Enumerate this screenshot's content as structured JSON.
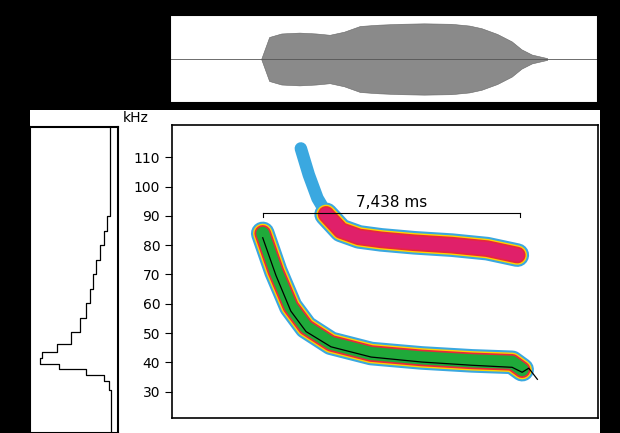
{
  "chart_data": {
    "type": "spectrogram",
    "y_label": "kHz",
    "xlim": [
      0,
      12.3
    ],
    "ylim": [
      21,
      121
    ],
    "yticks": [
      30,
      40,
      50,
      60,
      70,
      80,
      90,
      100,
      110
    ],
    "tick_labels": "y",
    "grid": false,
    "annotation": {
      "text": "7,438 ms",
      "start": 2.62,
      "end": 10.05,
      "y": 90.9
    },
    "series": [
      {
        "type": "faint",
        "color": "#3aa8e0",
        "x": [
          3.72,
          3.95,
          4.2,
          4.5
        ],
        "values": [
          113,
          104,
          96,
          90
        ]
      },
      {
        "type": "band",
        "color": "#e0206a",
        "x": [
          4.45,
          4.88,
          5.4,
          6.04,
          7.0,
          8.08,
          9.1,
          9.97
        ],
        "values": [
          90.5,
          85,
          82.8,
          81.8,
          80.8,
          80,
          78.8,
          76.6
        ]
      },
      {
        "type": "band",
        "color": "#1faa3a",
        "x": [
          2.62,
          3.0,
          3.43,
          3.87,
          4.59,
          5.75,
          7.21,
          8.66,
          9.82,
          10.11
        ],
        "values": [
          84,
          71,
          59,
          52,
          46.5,
          43,
          41.5,
          40.5,
          40,
          37.5
        ]
      },
      {
        "type": "line",
        "color": "#000000",
        "x": [
          2.62,
          3.0,
          3.43,
          3.87,
          4.59,
          5.75,
          7.21,
          8.66,
          9.82,
          10.11,
          10.3,
          10.55
        ],
        "values": [
          82.5,
          69.7,
          57.5,
          50.5,
          45.3,
          41.8,
          40.1,
          39.0,
          38.3,
          36.6,
          38,
          34.2
        ]
      }
    ],
    "waveform": {
      "color": "#8a8a8a",
      "ylim": [
        -1,
        1
      ],
      "x": [
        2.62,
        2.85,
        3.2,
        3.72,
        4.2,
        4.59,
        5.0,
        5.46,
        6.0,
        6.63,
        7.3,
        8.08,
        8.6,
        8.95,
        9.4,
        9.82,
        10.1,
        10.4,
        10.84
      ],
      "values": [
        0,
        0.5,
        0.58,
        0.6,
        0.58,
        0.55,
        0.62,
        0.75,
        0.78,
        0.8,
        0.81,
        0.8,
        0.76,
        0.7,
        0.57,
        0.4,
        0.22,
        0.1,
        0.02
      ]
    },
    "spectrum": {
      "color": "#000000",
      "xlim": [
        1.05,
        -0.08
      ],
      "ylim": [
        15,
        121
      ],
      "frequency": [
        121,
        110,
        95,
        90,
        85,
        80,
        75,
        70,
        65,
        60,
        55,
        50,
        46,
        43,
        41,
        39,
        37,
        35,
        33,
        30,
        25,
        15
      ],
      "values": [
        0.02,
        0.02,
        0.02,
        0.03,
        0.08,
        0.12,
        0.18,
        0.22,
        0.26,
        0.3,
        0.36,
        0.45,
        0.6,
        0.8,
        1.0,
        0.85,
        0.5,
        0.15,
        0.05,
        0.02,
        0.01,
        0.01
      ]
    }
  }
}
